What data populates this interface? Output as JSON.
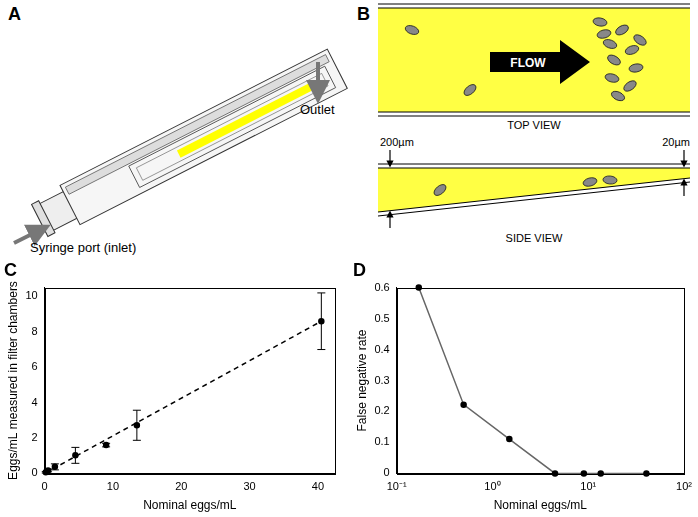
{
  "diagrams": {
    "A": {
      "panel": "A",
      "inlet": "Syringe port (inlet)",
      "outlet": "Outlet"
    },
    "B": {
      "panel": "B",
      "flow": "FLOW",
      "top_view": "TOP VIEW",
      "side_view": "SIDE VIEW",
      "inlet_depth": "200µm",
      "outlet_depth": "20µm"
    }
  },
  "chart_data": [
    {
      "type": "scatter",
      "title": "C",
      "x_label": "Nominal eggs/mL",
      "y_label": "Eggs/mL measured in filter chambers",
      "xlim": [
        0,
        42.5
      ],
      "xticks": [
        0,
        10,
        20,
        30,
        40
      ],
      "ylim": [
        0,
        10.5
      ],
      "yticks": [
        0,
        2,
        4,
        6,
        8,
        10
      ],
      "grid": false,
      "series": [
        {
          "x": [
            0.17,
            0.5,
            1.5,
            4.5,
            9,
            13.5,
            40.5
          ],
          "values": [
            0.06,
            0.17,
            0.37,
            1.02,
            1.6,
            2.72,
            8.6
          ],
          "error": [
            0.04,
            0.08,
            0.17,
            0.45,
            0.1,
            0.85,
            1.6
          ],
          "color": "#000000",
          "marker": "point",
          "line_style": "none"
        },
        {
          "x": [
            0,
            40.5
          ],
          "values": [
            0,
            8.6
          ],
          "color": "#000000",
          "marker": "none",
          "line_style": "dashed"
        }
      ]
    },
    {
      "type": "line",
      "title": "D",
      "x_label": "Nominal eggs/mL",
      "y_label": "False negative rate",
      "log": "x",
      "xlim": [
        0.1,
        100
      ],
      "xticks": [
        {
          "value": 0.1,
          "label": "10⁻¹"
        },
        {
          "value": 1,
          "label": "10⁰"
        },
        {
          "value": 10,
          "label": "10¹"
        },
        {
          "value": 100,
          "label": "10²"
        }
      ],
      "ylim": [
        0,
        0.6
      ],
      "yticks": [
        0,
        0.1,
        0.2,
        0.3,
        0.4,
        0.5,
        0.6
      ],
      "grid": false,
      "series": [
        {
          "x": [
            0.17,
            0.5,
            1.5,
            4.5,
            9,
            13.5,
            40.5
          ],
          "values": [
            0.6,
            0.222,
            0.111,
            0,
            0,
            0,
            0
          ],
          "color": "#666666",
          "marker": "point",
          "line_style": "solid"
        }
      ]
    }
  ]
}
